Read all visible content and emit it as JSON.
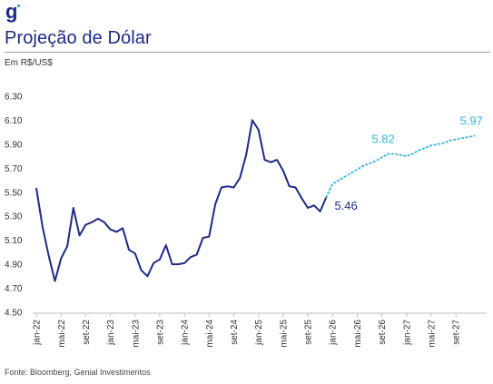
{
  "header": {
    "logo_text": "g",
    "title": "Projeção de Dólar",
    "unit": "Em R$/US$"
  },
  "footer": {
    "source": "Fonte: Bloomberg, Genial Investimentos"
  },
  "colors": {
    "historical": "#1d2a8a",
    "forecast": "#2fb5e6",
    "axis": "#bfbfbf"
  },
  "chart_data": {
    "type": "line",
    "title": "Projeção de Dólar",
    "ylabel": "Em R$/US$",
    "ylim": [
      4.5,
      6.3
    ],
    "yticks": [
      "6.30",
      "6.10",
      "5.90",
      "5.70",
      "5.50",
      "5.30",
      "5.10",
      "4.90",
      "4.70",
      "4.50"
    ],
    "xlim": [
      "2022-01",
      "2027-12"
    ],
    "xticks": [
      "jan-22",
      "mai-22",
      "set-22",
      "jan-23",
      "mai-23",
      "set-23",
      "jan-24",
      "mai-24",
      "set-24",
      "jan-25",
      "mai-25",
      "set-25",
      "jan-26",
      "mai-26",
      "set-26",
      "jan-27",
      "mai-27",
      "set-27"
    ],
    "grid": false,
    "series": [
      {
        "style": "solid",
        "x": [
          "2022-01",
          "2022-02",
          "2022-03",
          "2022-04",
          "2022-05",
          "2022-06",
          "2022-07",
          "2022-08",
          "2022-09",
          "2022-10",
          "2022-11",
          "2022-12",
          "2023-01",
          "2023-02",
          "2023-03",
          "2023-04",
          "2023-05",
          "2023-06",
          "2023-07",
          "2023-08",
          "2023-09",
          "2023-10",
          "2023-11",
          "2023-12",
          "2024-01",
          "2024-02",
          "2024-03",
          "2024-04",
          "2024-05",
          "2024-06",
          "2024-07",
          "2024-08",
          "2024-09",
          "2024-10",
          "2024-11",
          "2024-12",
          "2025-01",
          "2025-02",
          "2025-03",
          "2025-04",
          "2025-05",
          "2025-06",
          "2025-07",
          "2025-08",
          "2025-09",
          "2025-10",
          "2025-11",
          "2025-12"
        ],
        "values": [
          5.53,
          5.21,
          4.97,
          4.76,
          4.95,
          5.05,
          5.37,
          5.14,
          5.23,
          5.25,
          5.28,
          5.25,
          5.19,
          5.17,
          5.2,
          5.02,
          4.99,
          4.85,
          4.8,
          4.91,
          4.94,
          5.06,
          4.9,
          4.9,
          4.91,
          4.96,
          4.98,
          5.12,
          5.13,
          5.4,
          5.54,
          5.55,
          5.54,
          5.62,
          5.81,
          6.1,
          6.02,
          5.77,
          5.75,
          5.77,
          5.68,
          5.55,
          5.54,
          5.45,
          5.37,
          5.39,
          5.34,
          5.46
        ]
      },
      {
        "style": "dotted",
        "x": [
          "2025-12",
          "2026-01",
          "2026-02",
          "2026-03",
          "2026-04",
          "2026-05",
          "2026-06",
          "2026-07",
          "2026-08",
          "2026-09",
          "2026-10",
          "2026-11",
          "2026-12",
          "2027-01",
          "2027-02",
          "2027-03",
          "2027-04",
          "2027-05",
          "2027-06",
          "2027-07",
          "2027-08",
          "2027-09",
          "2027-10",
          "2027-11",
          "2027-12"
        ],
        "values": [
          5.46,
          5.57,
          5.6,
          5.63,
          5.66,
          5.69,
          5.72,
          5.74,
          5.76,
          5.79,
          5.82,
          5.82,
          5.81,
          5.8,
          5.82,
          5.85,
          5.87,
          5.89,
          5.9,
          5.91,
          5.93,
          5.94,
          5.95,
          5.96,
          5.97
        ]
      }
    ],
    "annotations": [
      {
        "text": "5.46",
        "x": "2025-12",
        "y": 5.46,
        "color": "historical"
      },
      {
        "text": "5.82",
        "x": "2026-10",
        "y": 5.82,
        "color": "forecast"
      },
      {
        "text": "5.97",
        "x": "2027-12",
        "y": 5.97,
        "color": "forecast"
      }
    ]
  }
}
